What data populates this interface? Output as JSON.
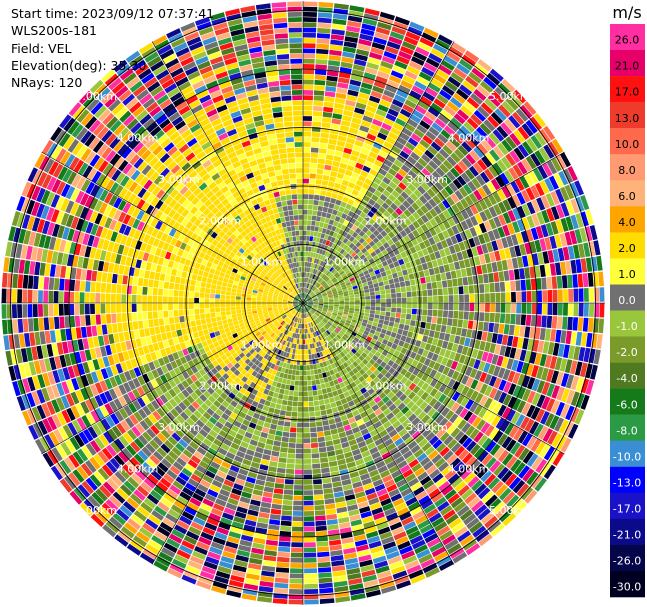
{
  "header": {
    "start_time": "Start time: 2023/09/12 07:37:41",
    "instrument": "WLS200s-181",
    "field": "Field: VEL",
    "elevation": "Elevation(deg): 35.30",
    "nrays": "NRays: 120"
  },
  "colorbar": {
    "unit": "m/s",
    "ticks": [
      "26.0",
      "21.0",
      "17.0",
      "13.0",
      "10.0",
      "8.0",
      "6.0",
      "4.0",
      "2.0",
      "1.0",
      "0.0",
      "-1.0",
      "-2.0",
      "-4.0",
      "-6.0",
      "-8.0",
      "-10.0",
      "-13.0",
      "-17.0",
      "-21.0",
      "-26.0",
      "-30.0"
    ],
    "colors": [
      "#ff2ea1",
      "#e8006a",
      "#ff1111",
      "#ee3b2b",
      "#ff6a4d",
      "#ff9a73",
      "#ffb37a",
      "#ffa500",
      "#ffdd00",
      "#ffff3a",
      "#707070",
      "#9ac63c",
      "#7a9a2a",
      "#4f7a1f",
      "#157a1a",
      "#2a9a44",
      "#3a8fd4",
      "#0000ff",
      "#1a12c8",
      "#0a0a8a",
      "#05054a",
      "#000020"
    ]
  },
  "chart_data": {
    "type": "heatmap",
    "projection": "polar PPI",
    "field": "VEL",
    "unit": "m/s",
    "nrays": 120,
    "value_range": [
      -30.0,
      26.0
    ],
    "range_ring_labels": [
      "1.00km",
      "2.00km",
      "3.00km",
      "4.00km",
      "5.00km"
    ],
    "range_rings_km": [
      1,
      2,
      3,
      4,
      5
    ]
  }
}
